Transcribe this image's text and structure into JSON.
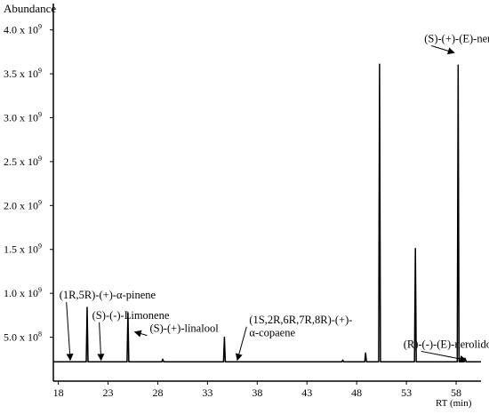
{
  "chart_data": {
    "type": "line",
    "ylabel": "Abundance",
    "xlabel": "RT  (min)",
    "xlim": [
      17.5,
      60.5
    ],
    "ylim": [
      0,
      4.3
    ],
    "x_ticks": [
      18,
      23,
      28,
      33,
      38,
      43,
      48,
      53,
      58
    ],
    "y_ticks": [
      {
        "value": 0.5,
        "label": "5.0 x 10",
        "exp": "8"
      },
      {
        "value": 1.0,
        "label": "1.0 x 10",
        "exp": "9"
      },
      {
        "value": 1.5,
        "label": "1.5 x 10",
        "exp": "9"
      },
      {
        "value": 2.0,
        "label": "2.0 x 10",
        "exp": "9"
      },
      {
        "value": 2.5,
        "label": "2.5 x 10",
        "exp": "9"
      },
      {
        "value": 3.0,
        "label": "3.0 x 10",
        "exp": "9"
      },
      {
        "value": 3.5,
        "label": "3.5 x 10",
        "exp": "9"
      },
      {
        "value": 4.0,
        "label": "4.0 x 10",
        "exp": "9"
      }
    ],
    "y_unit_note": "y values in units of 10^9",
    "baseline": 0.22,
    "peaks": [
      {
        "rt": 20.9,
        "height": 0.84
      },
      {
        "rt": 25.0,
        "height": 0.78
      },
      {
        "rt": 28.5,
        "height": 0.25
      },
      {
        "rt": 34.7,
        "height": 0.5
      },
      {
        "rt": 46.6,
        "height": 0.24
      },
      {
        "rt": 48.9,
        "height": 0.32
      },
      {
        "rt": 50.3,
        "height": 3.61
      },
      {
        "rt": 53.9,
        "height": 1.51
      },
      {
        "rt": 58.2,
        "height": 3.6
      },
      {
        "rt": 58.9,
        "height": 0.26
      }
    ],
    "annotations": [
      {
        "text": "(1R,5R)-(+)-α-pinene",
        "tx": 18.1,
        "ty": 0.94,
        "ax": 19.2,
        "ay": 0.24
      },
      {
        "text": "(S)-(-)-Limonene",
        "tx": 21.4,
        "ty": 0.71,
        "ax": 22.3,
        "ay": 0.24
      },
      {
        "text": "(S)-(+)-linalool",
        "tx": 27.2,
        "ty": 0.56,
        "ax": 25.7,
        "ay": 0.56
      },
      {
        "text": "(1S,2R,6R,7R,8R)-(+)-",
        "tx": 37.2,
        "ty": 0.66,
        "ax": 36.0,
        "ay": 0.24
      },
      {
        "text": "α-copaene",
        "tx": 37.2,
        "ty": 0.51,
        "ax": null,
        "ay": null
      },
      {
        "text": "(S)-(+)-(E)-nerolidol",
        "tx": 54.8,
        "ty": 3.86,
        "ax": 57.8,
        "ay": 3.74
      },
      {
        "text": "(R)-(-)-(E)-nerolidol",
        "tx": 52.7,
        "ty": 0.38,
        "ax": 59.0,
        "ay": 0.24
      }
    ]
  }
}
